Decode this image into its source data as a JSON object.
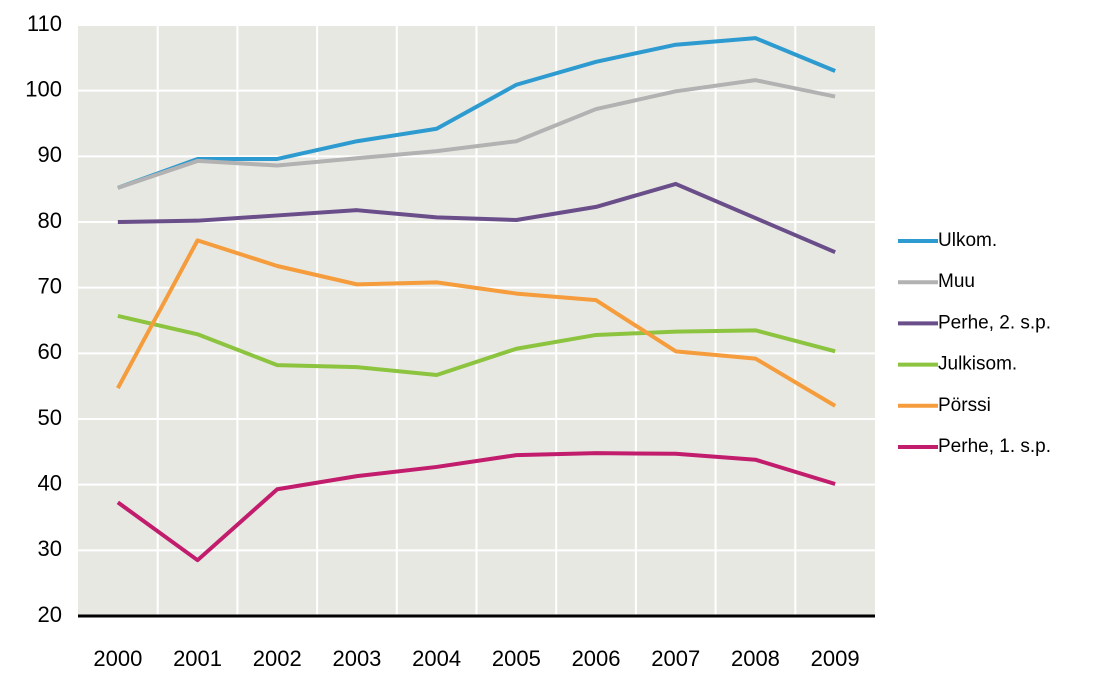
{
  "chart_data": {
    "type": "line",
    "categories": [
      "2000",
      "2001",
      "2002",
      "2003",
      "2004",
      "2005",
      "2006",
      "2007",
      "2008",
      "2009"
    ],
    "series": [
      {
        "name": "Ulkom.",
        "color": "#2e9bd0",
        "values": [
          85.2,
          89.6,
          89.6,
          92.3,
          94.2,
          100.9,
          104.4,
          107,
          108,
          103
        ]
      },
      {
        "name": "Muu",
        "color": "#b2b2b2",
        "values": [
          85.2,
          89.3,
          88.6,
          89.7,
          90.8,
          92.3,
          97.2,
          99.9,
          101.6,
          99.1
        ]
      },
      {
        "name": "Perhe, 2. s.p.",
        "color": "#6a4e8a",
        "values": [
          80,
          80.2,
          81,
          81.8,
          80.7,
          80.3,
          82.3,
          85.8,
          80.6,
          75.4
        ]
      },
      {
        "name": "Julkisom.",
        "color": "#8cc43f",
        "values": [
          65.7,
          62.9,
          58.2,
          57.9,
          56.7,
          60.7,
          62.8,
          63.3,
          63.5,
          60.3
        ]
      },
      {
        "name": "Pörssi",
        "color": "#f59c3c",
        "values": [
          54.7,
          77.2,
          73.3,
          70.5,
          70.8,
          69.1,
          68.1,
          60.3,
          59.2,
          52
        ]
      },
      {
        "name": "Perhe, 1. s.p.",
        "color": "#c21d6d",
        "values": [
          37.3,
          28.5,
          39.3,
          41.3,
          42.7,
          44.5,
          44.8,
          44.7,
          43.8,
          40.1
        ]
      }
    ],
    "ylim": [
      20,
      110
    ],
    "yticks": [
      20,
      30,
      40,
      50,
      60,
      70,
      80,
      90,
      100,
      110
    ],
    "grid": true,
    "legend": "right"
  }
}
